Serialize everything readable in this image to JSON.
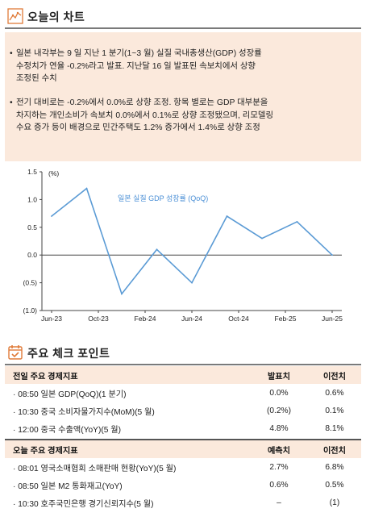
{
  "section1": {
    "title": "오늘의 차트"
  },
  "summary": {
    "bullet_char": "•",
    "bullets": [
      {
        "lines": [
          "일본 내각부는 9 일 지난 1 분기(1~3 월) 실질 국내총생산(GDP) 성장률",
          "수정치가 연율 -0.2%라고 발표. 지난달 16 일 발표된 속보치에서 상향",
          "조정된 수치"
        ]
      },
      {
        "lines": [
          "전기 대비로는 -0.2%에서 0.0%로 상향 조정. 항목 별로는 GDP 대부분을",
          "차지하는 개인소비가 속보치 0.0%에서 0.1%로 상향 조정됐으며, 리모델링",
          "수요 증가 등이 배경으로 민간주택도 1.2% 증가에서 1.4%로 상향 조정"
        ]
      }
    ]
  },
  "chart_data": {
    "type": "line",
    "unit_label": "(%)",
    "series": [
      {
        "name": "일본 실질 GDP 성장률 (QoQ)",
        "color": "#5b9bd5",
        "values": [
          0.7,
          1.2,
          -0.7,
          0.1,
          -0.5,
          0.7,
          0.3,
          0.6,
          0.0
        ]
      }
    ],
    "x": [
      "Jun-23",
      "Sep-23",
      "Dec-23",
      "Mar-24",
      "Jun-24",
      "Sep-24",
      "Dec-24",
      "Mar-25",
      "Jun-25"
    ],
    "xtick_labels": [
      "Jun-23",
      "Oct-23",
      "Feb-24",
      "Jun-24",
      "Oct-24",
      "Feb-25",
      "Jun-25"
    ],
    "ylim": [
      -1.0,
      1.5
    ],
    "yticks": [
      1.5,
      1.0,
      0.5,
      0.0,
      -0.5,
      -1.0
    ],
    "ytick_labels": [
      "1.5",
      "1.0",
      "0.5",
      "0.0",
      "(0.5)",
      "(1.0)"
    ],
    "zero_line": true,
    "grid": false
  },
  "section2": {
    "title": "주요 체크 포인트"
  },
  "table_prev": {
    "header": [
      "전일 주요 경제지표",
      "발표치",
      "이전치"
    ],
    "rows": [
      {
        "label": "· 08:50 일본 GDP(QoQ)(1 분기)",
        "v1": "0.0%",
        "v2": "0.6%"
      },
      {
        "label": "· 10:30 중국 소비자물가지수(MoM)(5 월)",
        "v1": "(0.2%)",
        "v2": "0.1%"
      },
      {
        "label": "· 12:00 중국 수출액(YoY)(5 월)",
        "v1": "4.8%",
        "v2": "8.1%"
      }
    ]
  },
  "table_today": {
    "header": [
      "오늘 주요 경제지표",
      "예측치",
      "이전치"
    ],
    "rows": [
      {
        "label": "· 08:01 영국소매협회 소매판매 현황(YoY)(5 월)",
        "v1": "2.7%",
        "v2": "6.8%"
      },
      {
        "label": "· 08:50 일본 M2 통화재고(YoY)",
        "v1": "0.6%",
        "v2": "0.5%"
      },
      {
        "label": "· 10:30 호주국민은행 경기신뢰지수(5 월)",
        "v1": "–",
        "v2": "(1)"
      }
    ]
  }
}
